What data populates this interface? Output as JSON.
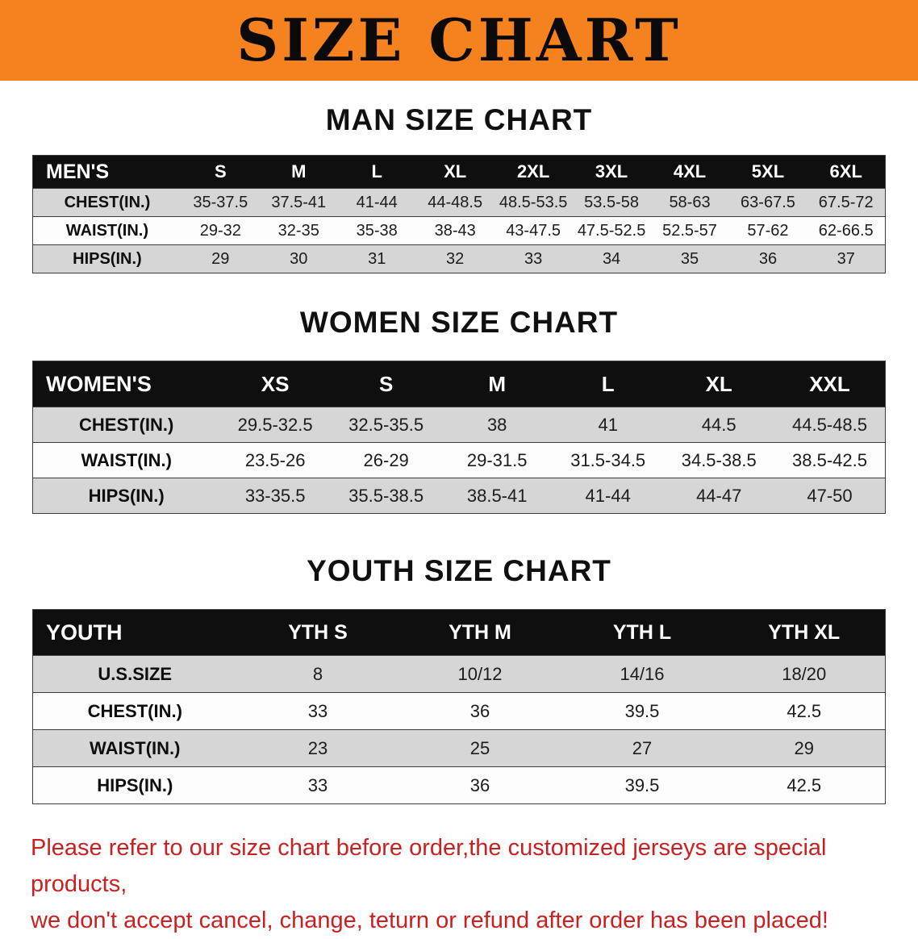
{
  "banner": {
    "title": "SIZE CHART"
  },
  "sections": {
    "men": {
      "heading": "MAN SIZE CHART",
      "table": {
        "header": [
          "MEN'S",
          "S",
          "M",
          "L",
          "XL",
          "2XL",
          "3XL",
          "4XL",
          "5XL",
          "6XL"
        ],
        "rows": [
          {
            "label": "CHEST(IN.)",
            "values": [
              "35-37.5",
              "37.5-41",
              "41-44",
              "44-48.5",
              "48.5-53.5",
              "53.5-58",
              "58-63",
              "63-67.5",
              "67.5-72"
            ]
          },
          {
            "label": "WAIST(IN.)",
            "values": [
              "29-32",
              "32-35",
              "35-38",
              "38-43",
              "43-47.5",
              "47.5-52.5",
              "52.5-57",
              "57-62",
              "62-66.5"
            ]
          },
          {
            "label": "HIPS(IN.)",
            "values": [
              "29",
              "30",
              "31",
              "32",
              "33",
              "34",
              "35",
              "36",
              "37"
            ]
          }
        ]
      }
    },
    "women": {
      "heading": "WOMEN SIZE CHART",
      "table": {
        "header": [
          "WOMEN'S",
          "XS",
          "S",
          "M",
          "L",
          "XL",
          "XXL"
        ],
        "rows": [
          {
            "label": "CHEST(IN.)",
            "values": [
              "29.5-32.5",
              "32.5-35.5",
              "38",
              "41",
              "44.5",
              "44.5-48.5"
            ]
          },
          {
            "label": "WAIST(IN.)",
            "values": [
              "23.5-26",
              "26-29",
              "29-31.5",
              "31.5-34.5",
              "34.5-38.5",
              "38.5-42.5"
            ]
          },
          {
            "label": "HIPS(IN.)",
            "values": [
              "33-35.5",
              "35.5-38.5",
              "38.5-41",
              "41-44",
              "44-47",
              "47-50"
            ]
          }
        ]
      }
    },
    "youth": {
      "heading": "YOUTH SIZE CHART",
      "table": {
        "header": [
          "YOUTH",
          "YTH S",
          "YTH M",
          "YTH L",
          "YTH XL"
        ],
        "rows": [
          {
            "label": "U.S.SIZE",
            "values": [
              "8",
              "10/12",
              "14/16",
              "18/20"
            ]
          },
          {
            "label": "CHEST(IN.)",
            "values": [
              "33",
              "36",
              "39.5",
              "42.5"
            ]
          },
          {
            "label": "WAIST(IN.)",
            "values": [
              "23",
              "25",
              "27",
              "29"
            ]
          },
          {
            "label": "HIPS(IN.)",
            "values": [
              "33",
              "36",
              "39.5",
              "42.5"
            ]
          }
        ]
      }
    }
  },
  "footer": {
    "lines": [
      "Please refer to our size chart before order,the customized jerseys are special products,",
      "we don't accept cancel, change, teturn or refund after order has been placed!"
    ]
  },
  "colors": {
    "banner_orange": "#f5821e",
    "table_header_black": "#0f0f0f",
    "row_gray": "#d6d6d6",
    "footer_red": "#cc1f1f"
  }
}
